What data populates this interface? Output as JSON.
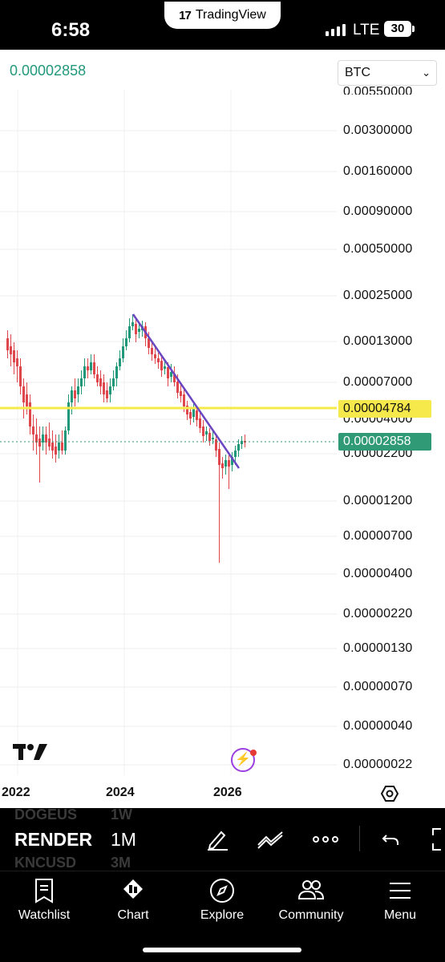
{
  "status_bar": {
    "time": "6:58",
    "app_pill": "TradingView",
    "network": "LTE",
    "battery": "30"
  },
  "chart": {
    "last_price": "0.00002858",
    "symbol_select": "BTC",
    "price_axis": [
      "0.00300000",
      "0.00160000",
      "0.00090000",
      "0.00050000",
      "0.00025000",
      "0.00013000",
      "0.00007000",
      "0.00004000",
      "0.00002200",
      "0.00001200",
      "0.00000700",
      "0.00000400",
      "0.00000220",
      "0.00000130",
      "0.00000070",
      "0.00000040",
      "0.00000022"
    ],
    "price_axis_partial": "0.00550000",
    "horizontal_line_tag": "0.00004784",
    "current_price_tag": "0.00002858",
    "years": [
      "2022",
      "2024",
      "2026"
    ],
    "colors": {
      "up": "#22987a",
      "down": "#e0474c",
      "hline": "#f5e94b",
      "trendline": "#6b46c1"
    }
  },
  "toolbar": {
    "symbol": "RENDER",
    "timeframe": "1M",
    "ghost_symbols": [
      "DOGEUS",
      "KNCUSD"
    ],
    "ghost_timeframes": [
      "1W",
      "3M"
    ],
    "icons": [
      "pen-icon",
      "indicators-icon",
      "more-icon",
      "undo-icon",
      "fullscreen-icon"
    ]
  },
  "nav": [
    {
      "label": "Watchlist",
      "icon": "watchlist-icon"
    },
    {
      "label": "Chart",
      "icon": "chart-icon"
    },
    {
      "label": "Explore",
      "icon": "compass-icon"
    },
    {
      "label": "Community",
      "icon": "community-icon"
    },
    {
      "label": "Menu",
      "icon": "menu-icon"
    }
  ]
}
